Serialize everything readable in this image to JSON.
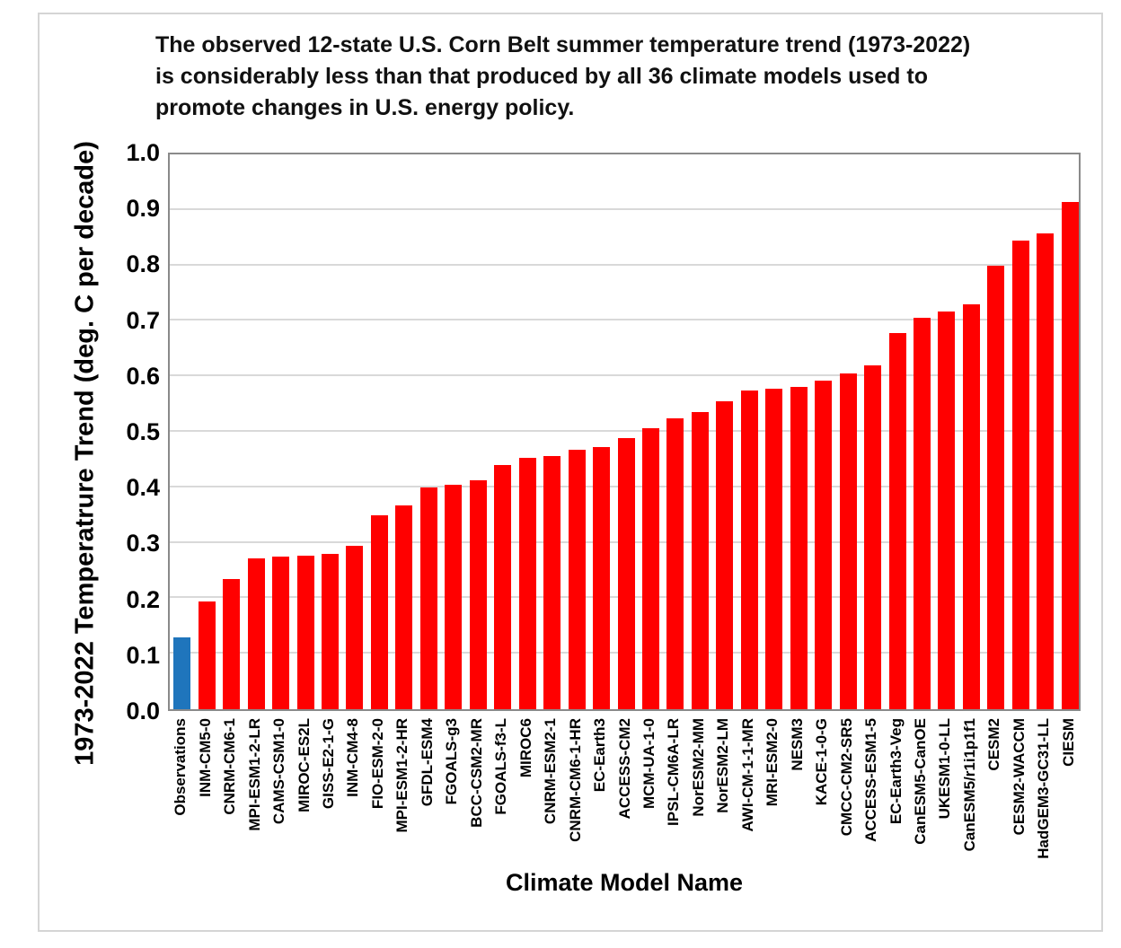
{
  "header": {
    "title_lines": [
      "The observed 12-state U.S. Corn Belt summer temperature trend (1973-2022)",
      "is considerably less than that produced by all 36 climate models used to",
      "promote changes in U.S. energy policy."
    ]
  },
  "chart_data": {
    "type": "bar",
    "title": "The observed 12-state U.S. Corn Belt summer temperature trend (1973-2022) is considerably less than that produced by all 36 climate models used to promote changes in U.S. energy policy.",
    "xlabel": "Climate Model Name",
    "ylabel": "1973-2022 Temperatrure Trend (deg. C per decade)",
    "ylim": [
      0.0,
      1.0
    ],
    "y_tick_labels": [
      "0.0",
      "0.1",
      "0.2",
      "0.3",
      "0.4",
      "0.5",
      "0.6",
      "0.7",
      "0.8",
      "0.9",
      "1.0"
    ],
    "grid": "horizontal",
    "legend_position": "none",
    "categories": [
      "Observations",
      "INM-CM5-0",
      "CNRM-CM6-1",
      "MPI-ESM1-2-LR",
      "CAMS-CSM1-0",
      "MIROC-ES2L",
      "GISS-E2-1-G",
      "INM-CM4-8",
      "FIO-ESM-2-0",
      "MPI-ESM1-2-HR",
      "GFDL-ESM4",
      "FGOALS-g3",
      "BCC-CSM2-MR",
      "FGOALS-f3-L",
      "MIROC6",
      "CNRM-ESM2-1",
      "CNRM-CM6-1-HR",
      "EC-Earth3",
      "ACCESS-CM2",
      "MCM-UA-1-0",
      "IPSL-CM6A-LR",
      "NorESM2-MM",
      "NorESM2-LM",
      "AWI-CM-1-1-MR",
      "MRI-ESM2-0",
      "NESM3",
      "KACE-1-0-G",
      "CMCC-CM2-SR5",
      "ACCESS-ESM1-5",
      "EC-Earth3-Veg",
      "CanESM5-CanOE",
      "UKESM1-0-LL",
      "CanESM5/r1i1p1f1",
      "CESM2",
      "CESM2-WACCM",
      "HadGEM3-GC31-LL",
      "CIESM"
    ],
    "values": [
      0.13,
      0.195,
      0.235,
      0.272,
      0.275,
      0.277,
      0.28,
      0.295,
      0.35,
      0.368,
      0.4,
      0.405,
      0.413,
      0.44,
      0.453,
      0.456,
      0.468,
      0.473,
      0.488,
      0.506,
      0.525,
      0.536,
      0.555,
      0.575,
      0.578,
      0.581,
      0.592,
      0.605,
      0.62,
      0.678,
      0.705,
      0.717,
      0.73,
      0.8,
      0.845,
      0.857,
      0.915
    ],
    "highlighted_category": "Observations",
    "colors": {
      "observations_bar": "#1F75BC",
      "model_bar": "#FF0000",
      "gridline": "#D9D9D9",
      "axis_border": "#8A8A8A",
      "text": "#000000",
      "frame_border": "#D5D5D5"
    }
  }
}
